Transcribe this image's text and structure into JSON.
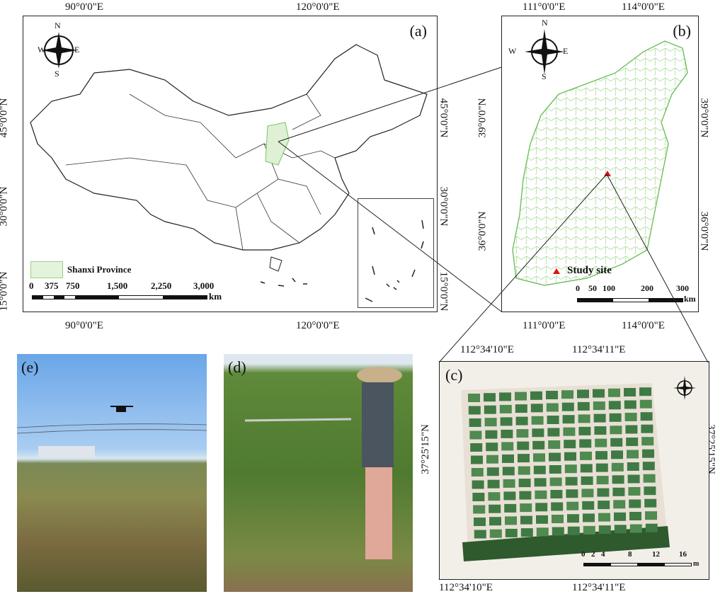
{
  "panel_a": {
    "label": "(a)",
    "top_lon": [
      "90°0'0\"E",
      "120°0'0\"E"
    ],
    "bottom_lon": [
      "90°0'0\"E",
      "120°0'0\"E"
    ],
    "lat": [
      "45°0'0\"N",
      "30°0'0\"N",
      "15°0'0\"N"
    ],
    "legend": "Shanxi Province",
    "scale_ticks": [
      "0",
      "375",
      "750",
      "1,500",
      "2,250",
      "3,000"
    ],
    "scale_unit": "km",
    "compass": {
      "n": "N",
      "s": "S",
      "e": "E",
      "w": "W"
    }
  },
  "panel_b": {
    "label": "(b)",
    "top_lon": [
      "111°0'0\"E",
      "114°0'0\"E"
    ],
    "bottom_lon": [
      "111°0'0\"E",
      "114°0'0\"E"
    ],
    "lat": [
      "39°0'0\"N",
      "36°0'0\"N"
    ],
    "legend": "Study site",
    "scale_ticks": [
      "0",
      "50",
      "100",
      "200",
      "300"
    ],
    "scale_unit": "km",
    "compass": {
      "n": "N",
      "s": "S",
      "e": "E",
      "w": "W"
    },
    "colors": {
      "province": "#7cc26a",
      "site": "#e01010"
    }
  },
  "panel_c": {
    "label": "(c)",
    "top_lon": [
      "112°34'10\"E",
      "112°34'11\"E"
    ],
    "bottom_lon": [
      "112°34'10\"E",
      "112°34'11\"E"
    ],
    "lat": "37°25'15\"N",
    "scale_ticks": [
      "0",
      "2",
      "4",
      "8",
      "12",
      "16"
    ],
    "scale_unit": "m"
  },
  "panel_d": {
    "label": "(d)"
  },
  "panel_e": {
    "label": "(e)"
  }
}
